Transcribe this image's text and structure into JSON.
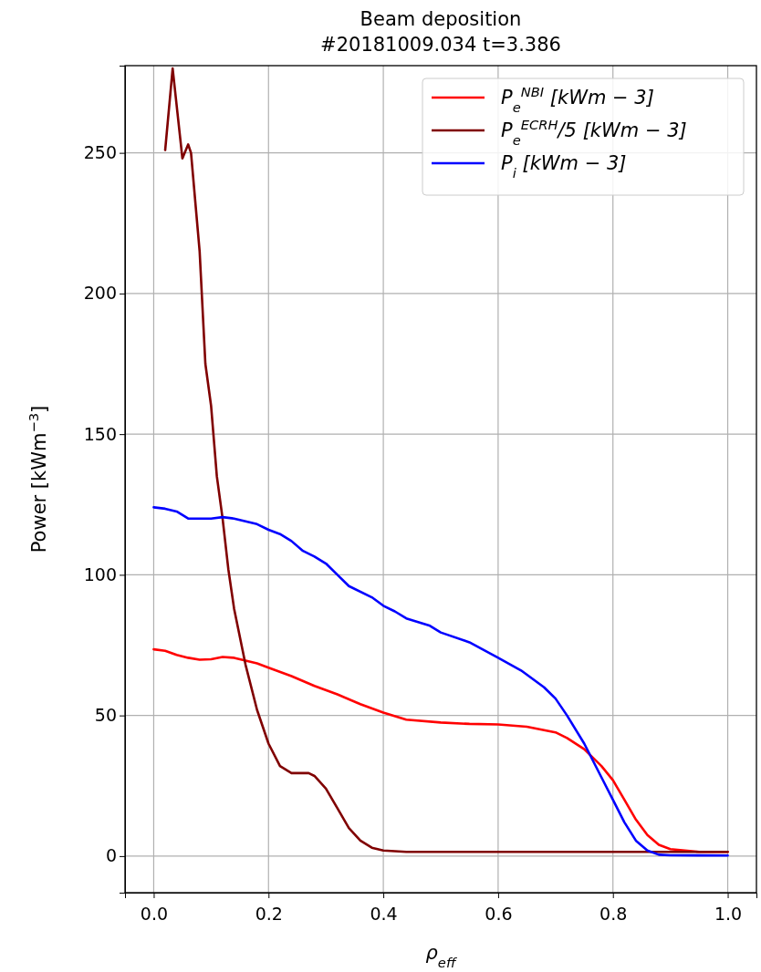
{
  "chart_data": {
    "type": "line",
    "title": "Beam deposition",
    "subtitle": "#20181009.034 t=3.386",
    "xlabel": "ρ$_{eff}$",
    "ylabel": "Power [kWm$^{−3}$]",
    "xlim": [
      -0.05,
      1.05
    ],
    "ylim": [
      -13,
      281
    ],
    "xticks": [
      {
        "value": 0,
        "label": "0.0"
      },
      {
        "value": 0.2,
        "label": "0.2"
      },
      {
        "value": 0.4,
        "label": "0.4"
      },
      {
        "value": 0.6,
        "label": "0.6"
      },
      {
        "value": 0.8,
        "label": "0.8"
      },
      {
        "value": 1,
        "label": "1.0"
      }
    ],
    "yticks": [
      0,
      50,
      100,
      150,
      200,
      250
    ],
    "grid": true,
    "legend": "top right",
    "series": [
      {
        "name": "P$_{e}$$^{NBI}$ [kWm − 3]",
        "color": "#ff0000",
        "x": [
          0,
          0.02,
          0.04,
          0.06,
          0.08,
          0.1,
          0.12,
          0.14,
          0.16,
          0.18,
          0.2,
          0.24,
          0.28,
          0.32,
          0.36,
          0.4,
          0.44,
          0.5,
          0.55,
          0.6,
          0.65,
          0.7,
          0.72,
          0.75,
          0.78,
          0.8,
          0.82,
          0.84,
          0.86,
          0.88,
          0.9,
          0.95,
          1.0
        ],
        "values": [
          73.5,
          73,
          71.5,
          70.5,
          69.8,
          70,
          70.8,
          70.5,
          69.5,
          68.5,
          67,
          64,
          60.5,
          57.5,
          54,
          51,
          48.5,
          47.5,
          47,
          46.8,
          46,
          44,
          42,
          38,
          32,
          27,
          20,
          13,
          7.5,
          4,
          2.5,
          1.5,
          1.5
        ]
      },
      {
        "name": "P$_{e}$$^{ECRH}$/5  [kWm − 3]",
        "color": "#800000",
        "x": [
          0.02,
          0.033,
          0.05,
          0.06,
          0.065,
          0.08,
          0.09,
          0.1,
          0.11,
          0.12,
          0.13,
          0.14,
          0.16,
          0.18,
          0.2,
          0.22,
          0.24,
          0.27,
          0.28,
          0.3,
          0.32,
          0.34,
          0.36,
          0.38,
          0.4,
          0.44,
          0.5,
          1.0
        ],
        "values": [
          251,
          280,
          248,
          253,
          250,
          215,
          175,
          160,
          135,
          120,
          102,
          88,
          68,
          52,
          40,
          32,
          29.5,
          29.5,
          28.5,
          24,
          17,
          10,
          5.5,
          3,
          2,
          1.5,
          1.5,
          1.5
        ]
      },
      {
        "name": "P$_{i}$ [kWm − 3]",
        "color": "#0000ff",
        "x": [
          0,
          0.02,
          0.04,
          0.06,
          0.08,
          0.1,
          0.12,
          0.14,
          0.16,
          0.18,
          0.2,
          0.22,
          0.24,
          0.26,
          0.28,
          0.3,
          0.32,
          0.34,
          0.38,
          0.4,
          0.42,
          0.44,
          0.48,
          0.5,
          0.55,
          0.6,
          0.64,
          0.68,
          0.7,
          0.72,
          0.75,
          0.78,
          0.8,
          0.82,
          0.84,
          0.86,
          0.88,
          0.9,
          1.0
        ],
        "values": [
          124,
          123.5,
          122.5,
          120,
          120,
          120,
          120.5,
          120,
          119,
          118,
          116,
          114.5,
          112,
          108.5,
          106.5,
          104,
          100,
          96,
          92,
          89,
          87,
          84.5,
          82,
          79.5,
          76,
          70.5,
          66,
          60,
          56,
          50,
          40,
          28,
          20,
          12,
          5.5,
          2,
          0.5,
          0.3,
          0.2
        ]
      }
    ]
  }
}
